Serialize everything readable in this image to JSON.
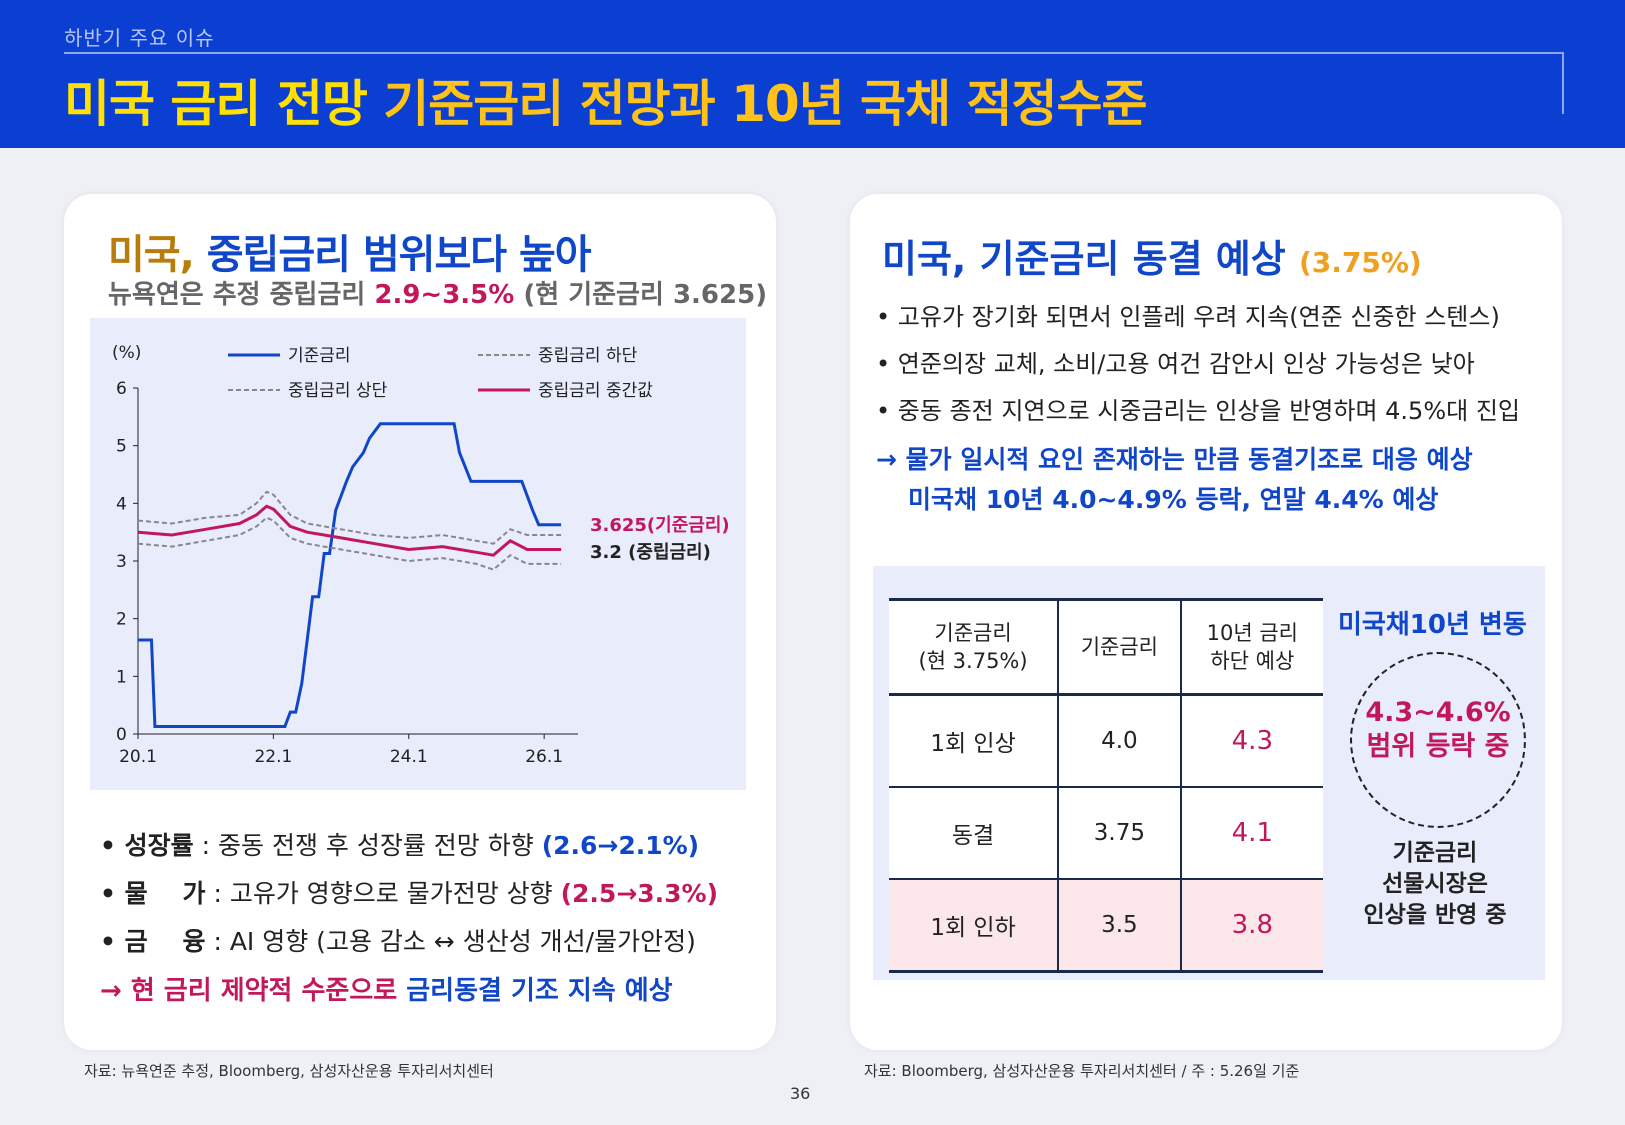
{
  "header": {
    "eyebrow": "하반기 주요 이슈",
    "title_part1": "미국 금리 전망",
    "title_part2": "기준금리 전망과 10년 국채 적정수준"
  },
  "left": {
    "heading_a": "미국,",
    "heading_b": "중립금리 범위보다 높아",
    "sub_pre": "뉴욕연은 추정 중립금리 ",
    "sub_hi": "2.9~3.5%",
    "sub_post": " (현 기준금리 3.625)",
    "bullets": [
      {
        "label": "• 성장률",
        "text": " : 중동 전쟁 후 성장률 전망 하향 ",
        "val": "(2.6→2.1%)"
      },
      {
        "label": "• 물    가",
        "text": " : 고유가 영향으로 물가전망 상향 ",
        "val": "(2.5→3.3%)"
      },
      {
        "label": "• 금    융",
        "text": " : AI 영향 (고용 감소 ↔ 생산성 개선/물가안정)",
        "val": ""
      }
    ],
    "conclusion_p": "→ 현 금리 제약적 수준으로 ",
    "conclusion_b": "금리동결 기조 지속 예상",
    "source": "자료: 뉴욕연준 추정, Bloomberg, 삼성자산운용 투자리서치센터"
  },
  "chart_data": {
    "type": "line",
    "ylabel": "(%)",
    "ylim": [
      0,
      6
    ],
    "yticks": [
      "0",
      "1",
      "2",
      "3",
      "4",
      "5",
      "6"
    ],
    "xticks": [
      "20.1",
      "22.1",
      "24.1",
      "26.1"
    ],
    "xlim": [
      2020.0,
      2026.5
    ],
    "legend": [
      "기준금리",
      "중립금리 하단",
      "중립금리 상단",
      "중립금리 중간값"
    ],
    "annotations": [
      "3.625(기준금리)",
      "3.2 (중립금리)"
    ],
    "colors": {
      "policy": "#1046c8",
      "mid": "#c2185b",
      "band": "#888888"
    },
    "series": [
      {
        "name": "기준금리",
        "x": [
          2020.0,
          2020.2,
          2020.25,
          2022.17,
          2022.25,
          2022.33,
          2022.42,
          2022.5,
          2022.58,
          2022.67,
          2022.75,
          2022.83,
          2022.92,
          2023.08,
          2023.17,
          2023.33,
          2023.42,
          2023.58,
          2024.67,
          2024.75,
          2024.92,
          2025.67,
          2025.75,
          2025.83,
          2025.92,
          2026.25
        ],
        "y": [
          1.63,
          1.63,
          0.13,
          0.13,
          0.38,
          0.38,
          0.88,
          1.63,
          2.38,
          2.38,
          3.13,
          3.13,
          3.88,
          4.38,
          4.63,
          4.88,
          5.13,
          5.38,
          5.38,
          4.88,
          4.38,
          4.38,
          4.13,
          3.88,
          3.63,
          3.63
        ]
      },
      {
        "name": "중립금리 상단",
        "x": [
          2020.0,
          2020.5,
          2021.0,
          2021.5,
          2021.75,
          2021.9,
          2022.0,
          2022.25,
          2022.5,
          2022.75,
          2023.0,
          2023.5,
          2024.0,
          2024.5,
          2025.0,
          2025.25,
          2025.5,
          2025.75,
          2026.25
        ],
        "y": [
          3.7,
          3.65,
          3.75,
          3.8,
          4.0,
          4.2,
          4.15,
          3.8,
          3.65,
          3.6,
          3.55,
          3.45,
          3.4,
          3.45,
          3.35,
          3.3,
          3.55,
          3.45,
          3.45
        ]
      },
      {
        "name": "중립금리 중간값",
        "x": [
          2020.0,
          2020.5,
          2021.0,
          2021.5,
          2021.75,
          2021.9,
          2022.0,
          2022.25,
          2022.5,
          2022.75,
          2023.0,
          2023.5,
          2024.0,
          2024.5,
          2025.0,
          2025.25,
          2025.5,
          2025.75,
          2026.25
        ],
        "y": [
          3.5,
          3.45,
          3.55,
          3.65,
          3.8,
          3.95,
          3.9,
          3.6,
          3.5,
          3.45,
          3.4,
          3.3,
          3.2,
          3.25,
          3.15,
          3.1,
          3.35,
          3.2,
          3.2
        ]
      },
      {
        "name": "중립금리 하단",
        "x": [
          2020.0,
          2020.5,
          2021.0,
          2021.5,
          2021.75,
          2021.9,
          2022.0,
          2022.25,
          2022.5,
          2022.75,
          2023.0,
          2023.5,
          2024.0,
          2024.5,
          2025.0,
          2025.25,
          2025.5,
          2025.75,
          2026.25
        ],
        "y": [
          3.3,
          3.25,
          3.35,
          3.45,
          3.6,
          3.75,
          3.7,
          3.4,
          3.3,
          3.25,
          3.2,
          3.1,
          3.0,
          3.05,
          2.95,
          2.85,
          3.1,
          2.95,
          2.95
        ]
      }
    ]
  },
  "right": {
    "heading": "미국, 기준금리 동결 예상",
    "heading_pct": "(3.75%)",
    "bullets": [
      "• 고유가 장기화 되면서 인플레 우려 지속(연준 신중한 스텐스)",
      "• 연준의장 교체, 소비/고용 여건 감안시 인상 가능성은 낮아",
      "• 중동 종전 지연으로 시중금리는 인상을 반영하며 4.5%대 진입"
    ],
    "arrow_line1": "→ 물가 일시적 요인 존재하는 만큼 동결기조로 대응 예상",
    "arrow_line2": "미국채 10년 4.0~4.9% 등락, 연말 4.4% 예상",
    "table": {
      "h1_line1": "기준금리",
      "h1_line2": "(현 3.75%)",
      "h2": "기준금리",
      "h3_line1": "10년 금리",
      "h3_line2": "하단 예상",
      "rows": [
        {
          "c1": "1회 인상",
          "c2": "4.0",
          "c3": "4.3"
        },
        {
          "c1": "동결",
          "c2": "3.75",
          "c3": "4.1"
        },
        {
          "c1": "1회 인하",
          "c2": "3.5",
          "c3": "3.8"
        }
      ]
    },
    "side_title": "미국채10년 변동",
    "circle_line1": "4.3~4.6%",
    "circle_line2": "범위 등락 중",
    "note_line1": "기준금리",
    "note_line2": "선물시장은",
    "note_line3": "인상을 반영 중",
    "source": "자료: Bloomberg, 삼성자산운용 투자리서치센터 / 주 : 5.26일 기준"
  },
  "page_number": "36"
}
